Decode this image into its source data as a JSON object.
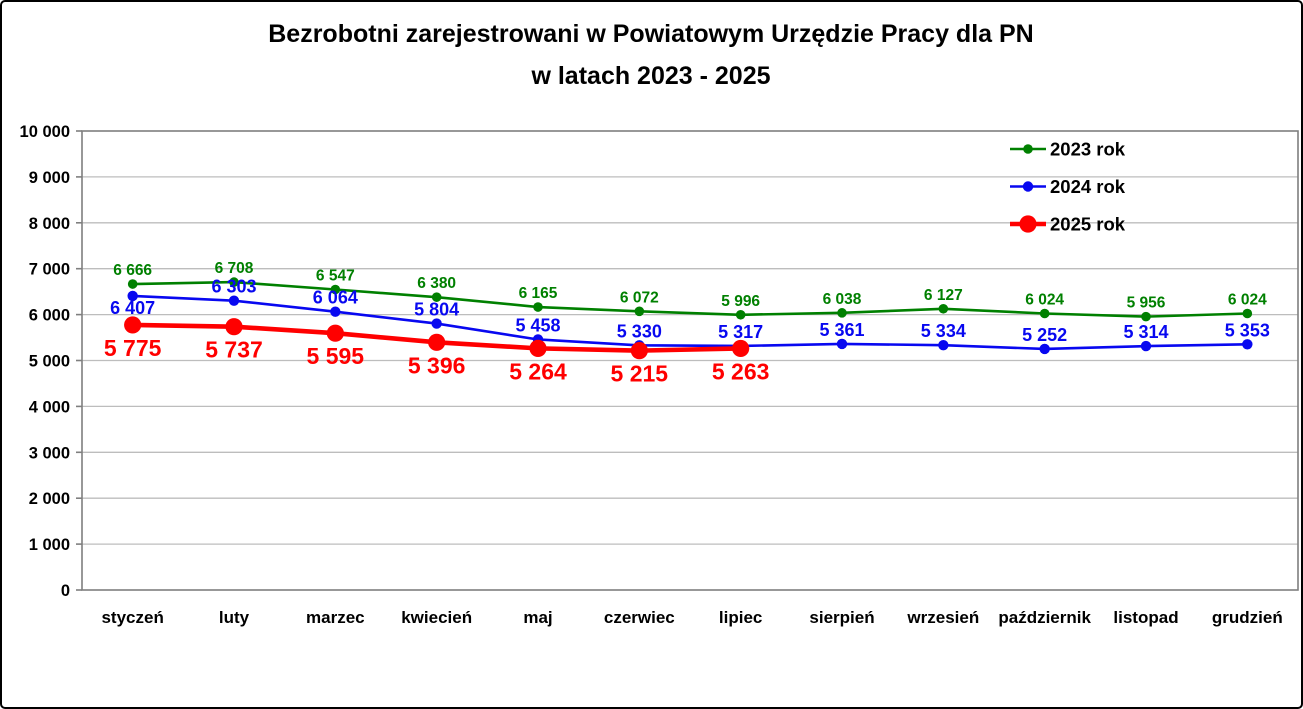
{
  "title": {
    "line1": "Bezrobotni zarejestrowani w Powiatowym Urzędzie Pracy dla PN",
    "line2": "w latach 2023 - 2025"
  },
  "chart_data": {
    "type": "line",
    "categories": [
      "styczeń",
      "luty",
      "marzec",
      "kwiecień",
      "maj",
      "czerwiec",
      "lipiec",
      "sierpień",
      "wrzesień",
      "październik",
      "listopad",
      "grudzień"
    ],
    "series": [
      {
        "name": "2023 rok",
        "color": "#008000",
        "values": [
          6666,
          6708,
          6547,
          6380,
          6165,
          6072,
          5996,
          6038,
          6127,
          6024,
          5956,
          6024
        ],
        "label_placement": "above"
      },
      {
        "name": "2024 rok",
        "color": "#0808F0",
        "values": [
          6407,
          6303,
          6064,
          5804,
          5458,
          5330,
          5317,
          5361,
          5334,
          5252,
          5314,
          5353
        ],
        "label_placement": "above",
        "label_placement_overrides": {
          "0": "below"
        }
      },
      {
        "name": "2025 rok",
        "color": "#FF0000",
        "values": [
          5775,
          5737,
          5595,
          5396,
          5264,
          5215,
          5263
        ],
        "label_placement": "below"
      }
    ],
    "ylim": [
      0,
      10000
    ],
    "ytick_values": [
      0,
      1000,
      2000,
      3000,
      4000,
      5000,
      6000,
      7000,
      8000,
      9000,
      10000
    ],
    "ytick_labels": [
      "0",
      "1 000",
      "2 000",
      "3 000",
      "4 000",
      "5 000",
      "6 000",
      "7 000",
      "8 000",
      "9 000",
      "10 000"
    ],
    "xlabel": "",
    "ylabel": "",
    "grid": true,
    "legend_position": "top-right",
    "colors": {
      "gridline": "#BDBDBD",
      "plot_border": "#7F7F7F",
      "tick": "#7F7F7F",
      "axis_text": "#000000",
      "background": "#FFFFFF",
      "frame_border": "#000000"
    }
  }
}
